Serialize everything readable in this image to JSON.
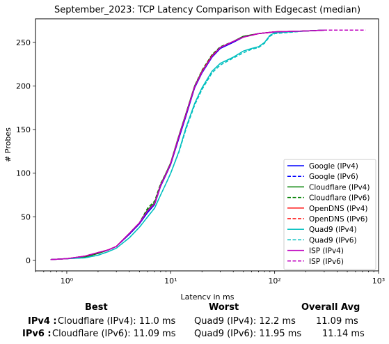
{
  "chart_data": {
    "type": "line",
    "title": "September_2023: TCP Latency Comparison with Edgecast (median)",
    "xlabel": "Latency in ms",
    "ylabel": "# Probes",
    "xscale": "log",
    "xlim": [
      0.5,
      1000
    ],
    "ylim": [
      -12,
      277
    ],
    "xticks": [
      {
        "value": 1,
        "label": "10⁰"
      },
      {
        "value": 10,
        "label": "10¹"
      },
      {
        "value": 100,
        "label": "10²"
      },
      {
        "value": 1000,
        "label": "10³"
      }
    ],
    "yticks": [
      0,
      50,
      100,
      150,
      200,
      250
    ],
    "grid": false,
    "legend_position": "lower right",
    "series": [
      {
        "name": "Google (IPv4)",
        "color": "#0000ff",
        "style": "solid",
        "points": [
          [
            0.7,
            1
          ],
          [
            1,
            2
          ],
          [
            1.5,
            4
          ],
          [
            2,
            8
          ],
          [
            2.5,
            12
          ],
          [
            3,
            16
          ],
          [
            4,
            30
          ],
          [
            5,
            42
          ],
          [
            6,
            55
          ],
          [
            7,
            64
          ],
          [
            8,
            85
          ],
          [
            9,
            98
          ],
          [
            10,
            110
          ],
          [
            12,
            140
          ],
          [
            14,
            165
          ],
          [
            17,
            198
          ],
          [
            20,
            215
          ],
          [
            25,
            233
          ],
          [
            30,
            243
          ],
          [
            40,
            250
          ],
          [
            50,
            256
          ],
          [
            70,
            260
          ],
          [
            100,
            262
          ],
          [
            200,
            263
          ],
          [
            300,
            264
          ]
        ]
      },
      {
        "name": "Google (IPv6)",
        "color": "#0000ff",
        "style": "dashed",
        "points": [
          [
            0.7,
            1
          ],
          [
            1,
            2
          ],
          [
            1.5,
            4
          ],
          [
            2,
            8
          ],
          [
            2.5,
            12
          ],
          [
            3,
            16
          ],
          [
            4,
            30
          ],
          [
            5,
            42
          ],
          [
            6,
            56
          ],
          [
            7,
            65
          ],
          [
            8,
            86
          ],
          [
            9,
            99
          ],
          [
            10,
            111
          ],
          [
            12,
            141
          ],
          [
            14,
            166
          ],
          [
            17,
            198
          ],
          [
            20,
            216
          ],
          [
            25,
            234
          ],
          [
            30,
            244
          ],
          [
            40,
            251
          ],
          [
            50,
            256
          ],
          [
            70,
            260
          ],
          [
            100,
            262
          ],
          [
            200,
            263
          ],
          [
            300,
            264
          ]
        ]
      },
      {
        "name": "Cloudflare (IPv4)",
        "color": "#008000",
        "style": "solid",
        "points": [
          [
            0.7,
            1
          ],
          [
            1,
            2
          ],
          [
            1.5,
            4
          ],
          [
            2,
            8
          ],
          [
            2.5,
            12
          ],
          [
            3,
            16
          ],
          [
            4,
            31
          ],
          [
            5,
            43
          ],
          [
            6,
            58
          ],
          [
            7,
            66
          ],
          [
            8,
            87
          ],
          [
            9,
            100
          ],
          [
            10,
            112
          ],
          [
            12,
            143
          ],
          [
            14,
            168
          ],
          [
            17,
            200
          ],
          [
            20,
            217
          ],
          [
            25,
            235
          ],
          [
            30,
            244
          ],
          [
            40,
            251
          ],
          [
            50,
            257
          ],
          [
            70,
            260
          ],
          [
            100,
            262
          ],
          [
            200,
            263
          ],
          [
            300,
            264
          ]
        ]
      },
      {
        "name": "Cloudflare (IPv6)",
        "color": "#008000",
        "style": "dashed",
        "points": [
          [
            0.7,
            1
          ],
          [
            1,
            2
          ],
          [
            1.5,
            4
          ],
          [
            2,
            8
          ],
          [
            2.5,
            12
          ],
          [
            3,
            16
          ],
          [
            4,
            31
          ],
          [
            5,
            43
          ],
          [
            6,
            60
          ],
          [
            7,
            68
          ],
          [
            8,
            88
          ],
          [
            9,
            100
          ],
          [
            10,
            112
          ],
          [
            12,
            143
          ],
          [
            14,
            168
          ],
          [
            17,
            200
          ],
          [
            20,
            218
          ],
          [
            25,
            236
          ],
          [
            30,
            245
          ],
          [
            40,
            251
          ],
          [
            50,
            257
          ],
          [
            70,
            260
          ],
          [
            100,
            262
          ],
          [
            200,
            263
          ],
          [
            300,
            264
          ]
        ]
      },
      {
        "name": "OpenDNS (IPv4)",
        "color": "#ff0000",
        "style": "solid",
        "points": [
          [
            0.7,
            1
          ],
          [
            1,
            2
          ],
          [
            1.5,
            5
          ],
          [
            2,
            9
          ],
          [
            2.5,
            12
          ],
          [
            3,
            16
          ],
          [
            4,
            31
          ],
          [
            5,
            43
          ],
          [
            6,
            57
          ],
          [
            7,
            65
          ],
          [
            8,
            86
          ],
          [
            9,
            99
          ],
          [
            10,
            111
          ],
          [
            12,
            142
          ],
          [
            14,
            167
          ],
          [
            17,
            199
          ],
          [
            20,
            216
          ],
          [
            25,
            234
          ],
          [
            30,
            244
          ],
          [
            40,
            251
          ],
          [
            50,
            256
          ],
          [
            70,
            260
          ],
          [
            100,
            262
          ],
          [
            200,
            263
          ],
          [
            300,
            264
          ]
        ]
      },
      {
        "name": "OpenDNS (IPv6)",
        "color": "#ff0000",
        "style": "dashed",
        "points": [
          [
            0.7,
            1
          ],
          [
            1,
            2
          ],
          [
            1.5,
            5
          ],
          [
            2,
            9
          ],
          [
            2.5,
            12
          ],
          [
            3,
            16
          ],
          [
            4,
            31
          ],
          [
            5,
            43
          ],
          [
            6,
            57
          ],
          [
            7,
            65
          ],
          [
            8,
            86
          ],
          [
            9,
            99
          ],
          [
            10,
            111
          ],
          [
            12,
            142
          ],
          [
            14,
            167
          ],
          [
            17,
            199
          ],
          [
            20,
            217
          ],
          [
            25,
            235
          ],
          [
            30,
            244
          ],
          [
            40,
            251
          ],
          [
            50,
            256
          ],
          [
            70,
            260
          ],
          [
            100,
            262
          ],
          [
            200,
            263
          ],
          [
            300,
            264
          ]
        ]
      },
      {
        "name": "Quad9 (IPv4)",
        "color": "#00bfbf",
        "style": "solid",
        "points": [
          [
            0.7,
            1
          ],
          [
            1,
            2
          ],
          [
            1.5,
            3
          ],
          [
            2,
            6
          ],
          [
            2.5,
            10
          ],
          [
            3,
            14
          ],
          [
            4,
            26
          ],
          [
            5,
            38
          ],
          [
            6,
            50
          ],
          [
            7,
            60
          ],
          [
            8,
            75
          ],
          [
            9,
            88
          ],
          [
            10,
            100
          ],
          [
            12,
            125
          ],
          [
            14,
            152
          ],
          [
            17,
            180
          ],
          [
            20,
            198
          ],
          [
            25,
            217
          ],
          [
            30,
            226
          ],
          [
            40,
            233
          ],
          [
            50,
            240
          ],
          [
            60,
            243
          ],
          [
            70,
            245
          ],
          [
            80,
            250
          ],
          [
            90,
            258
          ],
          [
            100,
            261
          ],
          [
            200,
            263
          ],
          [
            300,
            264
          ]
        ]
      },
      {
        "name": "Quad9 (IPv6)",
        "color": "#00bfbf",
        "style": "dashed",
        "points": [
          [
            0.7,
            1
          ],
          [
            1,
            2
          ],
          [
            1.5,
            3
          ],
          [
            2,
            6
          ],
          [
            2.5,
            10
          ],
          [
            3,
            14
          ],
          [
            4,
            26
          ],
          [
            5,
            38
          ],
          [
            6,
            50
          ],
          [
            7,
            60
          ],
          [
            8,
            75
          ],
          [
            9,
            88
          ],
          [
            10,
            100
          ],
          [
            12,
            124
          ],
          [
            14,
            150
          ],
          [
            17,
            178
          ],
          [
            20,
            196
          ],
          [
            25,
            215
          ],
          [
            30,
            224
          ],
          [
            40,
            232
          ],
          [
            50,
            238
          ],
          [
            60,
            242
          ],
          [
            70,
            244
          ],
          [
            80,
            249
          ],
          [
            90,
            257
          ],
          [
            100,
            260
          ],
          [
            200,
            263
          ],
          [
            300,
            264
          ]
        ]
      },
      {
        "name": "ISP (IPv4)",
        "color": "#bf00bf",
        "style": "solid",
        "points": [
          [
            0.7,
            1
          ],
          [
            1,
            2
          ],
          [
            1.5,
            5
          ],
          [
            2,
            9
          ],
          [
            2.5,
            12
          ],
          [
            3,
            16
          ],
          [
            4,
            31
          ],
          [
            5,
            43
          ],
          [
            6,
            57
          ],
          [
            7,
            65
          ],
          [
            8,
            86
          ],
          [
            9,
            99
          ],
          [
            10,
            111
          ],
          [
            12,
            142
          ],
          [
            14,
            167
          ],
          [
            17,
            199
          ],
          [
            20,
            216
          ],
          [
            25,
            234
          ],
          [
            30,
            244
          ],
          [
            40,
            251
          ],
          [
            50,
            256
          ],
          [
            70,
            260
          ],
          [
            100,
            262
          ],
          [
            200,
            263
          ],
          [
            300,
            264
          ]
        ]
      },
      {
        "name": "ISP (IPv6)",
        "color": "#bf00bf",
        "style": "dashed",
        "points": [
          [
            0.7,
            1
          ],
          [
            1,
            2
          ],
          [
            1.5,
            5
          ],
          [
            2,
            9
          ],
          [
            2.5,
            12
          ],
          [
            3,
            16
          ],
          [
            4,
            31
          ],
          [
            5,
            43
          ],
          [
            6,
            57
          ],
          [
            7,
            65
          ],
          [
            8,
            86
          ],
          [
            9,
            99
          ],
          [
            10,
            111
          ],
          [
            12,
            142
          ],
          [
            14,
            167
          ],
          [
            17,
            199
          ],
          [
            20,
            216
          ],
          [
            25,
            234
          ],
          [
            30,
            244
          ],
          [
            40,
            251
          ],
          [
            50,
            256
          ],
          [
            70,
            260
          ],
          [
            100,
            262
          ],
          [
            200,
            263
          ],
          [
            300,
            264
          ],
          [
            500,
            264
          ],
          [
            750,
            264
          ]
        ]
      }
    ]
  },
  "summary": {
    "headers": {
      "best": "Best",
      "worst": "Worst",
      "avg": "Overall Avg"
    },
    "rows": [
      {
        "label": "IPv4 :",
        "best": "Cloudflare (IPv4): 11.0 ms",
        "worst": "Quad9 (IPv4): 12.2 ms",
        "avg": "11.09 ms"
      },
      {
        "label": "IPv6 :",
        "best": "Cloudflare (IPv6): 11.09 ms",
        "worst": "Quad9 (IPv6): 11.95 ms",
        "avg": "11.14 ms"
      }
    ]
  }
}
